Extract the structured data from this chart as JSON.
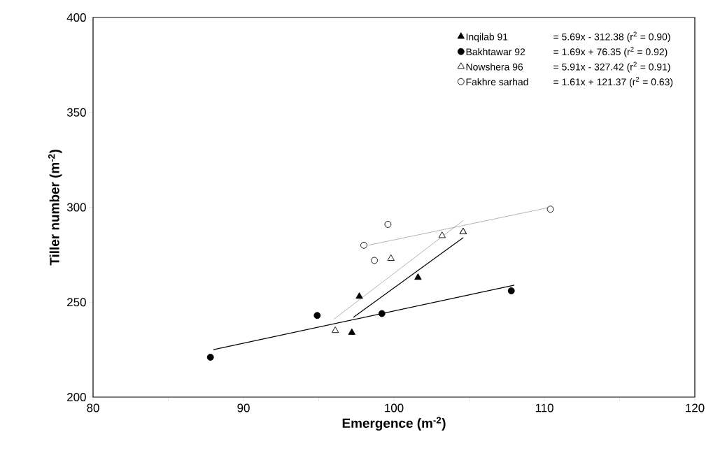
{
  "chart_data": {
    "type": "scatter",
    "xlabel": "Emergence (m$^{-2}$)",
    "ylabel": "Tiller number (m$^{-2}$)",
    "xlim": [
      80,
      120
    ],
    "xticks": [
      80,
      90,
      100,
      110,
      120
    ],
    "ylim": [
      200,
      400
    ],
    "yticks": [
      200,
      250,
      300,
      350,
      400
    ],
    "grid": false,
    "legend": "top right",
    "annotations": [
      "= 5.69x - 312.38 (r$^{2}$ = 0.90)",
      "= 1.69x + 76.35 (r$^{2}$ = 0.92)",
      "= 5.91x - 327.42 (r$^{2}$ = 0.91)",
      "= 1.61x + 121.37 (r$^{2}$ = 0.63)"
    ],
    "series": [
      {
        "name": "Inqilab 91",
        "marker": "triangle",
        "color": "#000000",
        "x": [
          97.7,
          101.6,
          97.2,
          104.6
        ],
        "values": [
          253,
          263,
          234,
          287
        ]
      },
      {
        "name": "Bakhtawar 92",
        "marker": "circle",
        "color": "#000000",
        "x": [
          87.8,
          94.9,
          99.2,
          107.8
        ],
        "values": [
          221,
          243,
          244,
          256
        ]
      },
      {
        "name": "Nowshera 96",
        "marker": "triangle",
        "color": "#ffffff",
        "x": [
          96.1,
          99.8,
          103.2,
          104.6
        ],
        "values": [
          235,
          273,
          285,
          287
        ]
      },
      {
        "name": "Fakhre sarhad",
        "marker": "circle",
        "color": "#ffffff",
        "x": [
          99.6,
          98.0,
          98.7,
          110.4
        ],
        "values": [
          291,
          280,
          272,
          299
        ]
      },
      {
        "type": "line",
        "marker": "none",
        "color": "#000000",
        "x": [
          97.3,
          104.6
        ],
        "values": [
          242,
          284
        ]
      },
      {
        "type": "line",
        "marker": "none",
        "color": "#000000",
        "x": [
          88.0,
          108.0
        ],
        "values": [
          225,
          259
        ]
      },
      {
        "type": "line",
        "marker": "none",
        "color": "#808080",
        "x": [
          96.0,
          104.6
        ],
        "values": [
          241,
          293
        ]
      },
      {
        "type": "line",
        "marker": "none",
        "color": "#808080",
        "x": [
          98.3,
          110.4
        ],
        "values": [
          280,
          300
        ]
      }
    ]
  }
}
